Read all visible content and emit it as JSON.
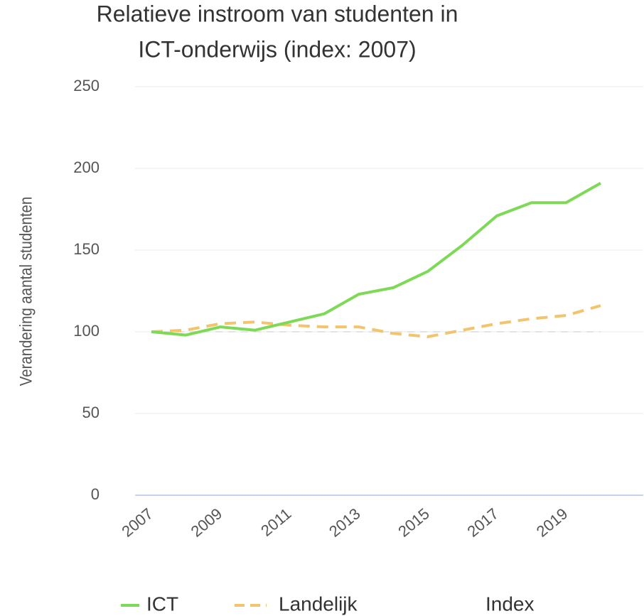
{
  "chart_data": {
    "type": "line",
    "title": [
      "Relatieve instroom van studenten in",
      "ICT-onderwijs (index: 2007)"
    ],
    "y_label": "Verandering aantal studenten",
    "x": [
      2007,
      2008,
      2009,
      2010,
      2011,
      2012,
      2013,
      2014,
      2015,
      2016,
      2017,
      2018,
      2019,
      2020
    ],
    "series": [
      {
        "name": "ICT",
        "color": "#7ed957",
        "dash": false,
        "values": [
          100,
          98,
          103,
          101,
          106,
          111,
          123,
          127,
          137,
          153,
          171,
          179,
          179,
          191
        ]
      },
      {
        "name": "Landelijk",
        "color": "#f2c46d",
        "dash": true,
        "values": [
          100,
          101,
          105,
          106,
          104,
          103,
          103,
          99,
          97,
          101,
          105,
          108,
          110,
          116
        ]
      },
      {
        "name": "Index",
        "color": "#e4e4e4",
        "dash": true,
        "values": [
          100,
          100,
          100,
          100,
          100,
          100,
          100,
          100,
          100,
          100,
          100,
          100,
          100,
          100
        ]
      }
    ],
    "xlim": [
      2007,
      2020
    ],
    "xticks": [
      2007,
      2009,
      2011,
      2013,
      2015,
      2017,
      2019
    ],
    "ylim": [
      0,
      250
    ],
    "yticks": [
      0,
      50,
      100,
      150,
      200,
      250
    ],
    "grid": true,
    "legend": "bottom"
  }
}
